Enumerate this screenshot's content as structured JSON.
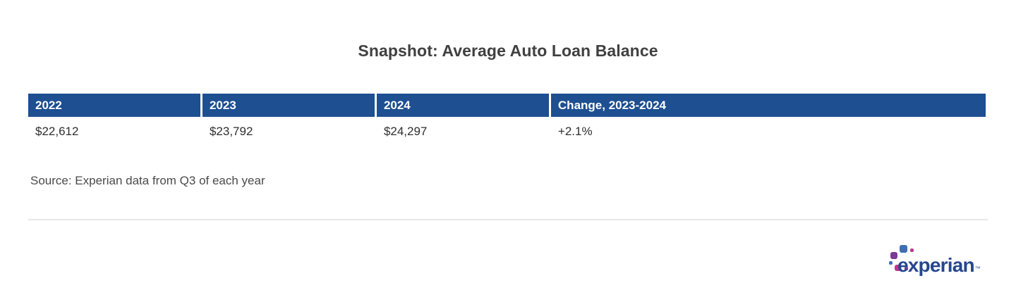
{
  "title": "Snapshot: Average Auto Loan Balance",
  "table": {
    "columns": [
      "2022",
      "2023",
      "2024",
      "Change, 2023-2024"
    ],
    "rows": [
      [
        "$22,612",
        "$23,792",
        "$24,297",
        "+2.1%"
      ]
    ]
  },
  "source": "Source: Experian data from Q3 of each year",
  "logo": {
    "wordmark": "experian",
    "trademark": "™",
    "mark_dots": [
      "blue-large",
      "magenta-small",
      "purple-large",
      "blue-small",
      "magenta-medium",
      "purple-small"
    ]
  },
  "colors": {
    "header_bg": "#1d4f91",
    "header_text": "#ffffff",
    "title_text": "#404040",
    "body_text": "#2e2e2e",
    "source_text": "#4a4a4a",
    "divider": "#e8e8e8",
    "logo_blue": "#3f6eb5",
    "logo_purple": "#7a3a96",
    "logo_magenta": "#c0368e",
    "logo_wordmark": "#26478d"
  },
  "chart_data": {
    "type": "table",
    "title": "Snapshot: Average Auto Loan Balance",
    "columns": [
      "2022",
      "2023",
      "2024",
      "Change, 2023-2024"
    ],
    "rows": [
      [
        "$22,612",
        "$23,792",
        "$24,297",
        "+2.1%"
      ]
    ],
    "values_numeric": {
      "2022": 22612,
      "2023": 23792,
      "2024": 24297,
      "change_2023_2024_pct": 2.1
    },
    "source": "Source: Experian data from Q3 of each year"
  }
}
